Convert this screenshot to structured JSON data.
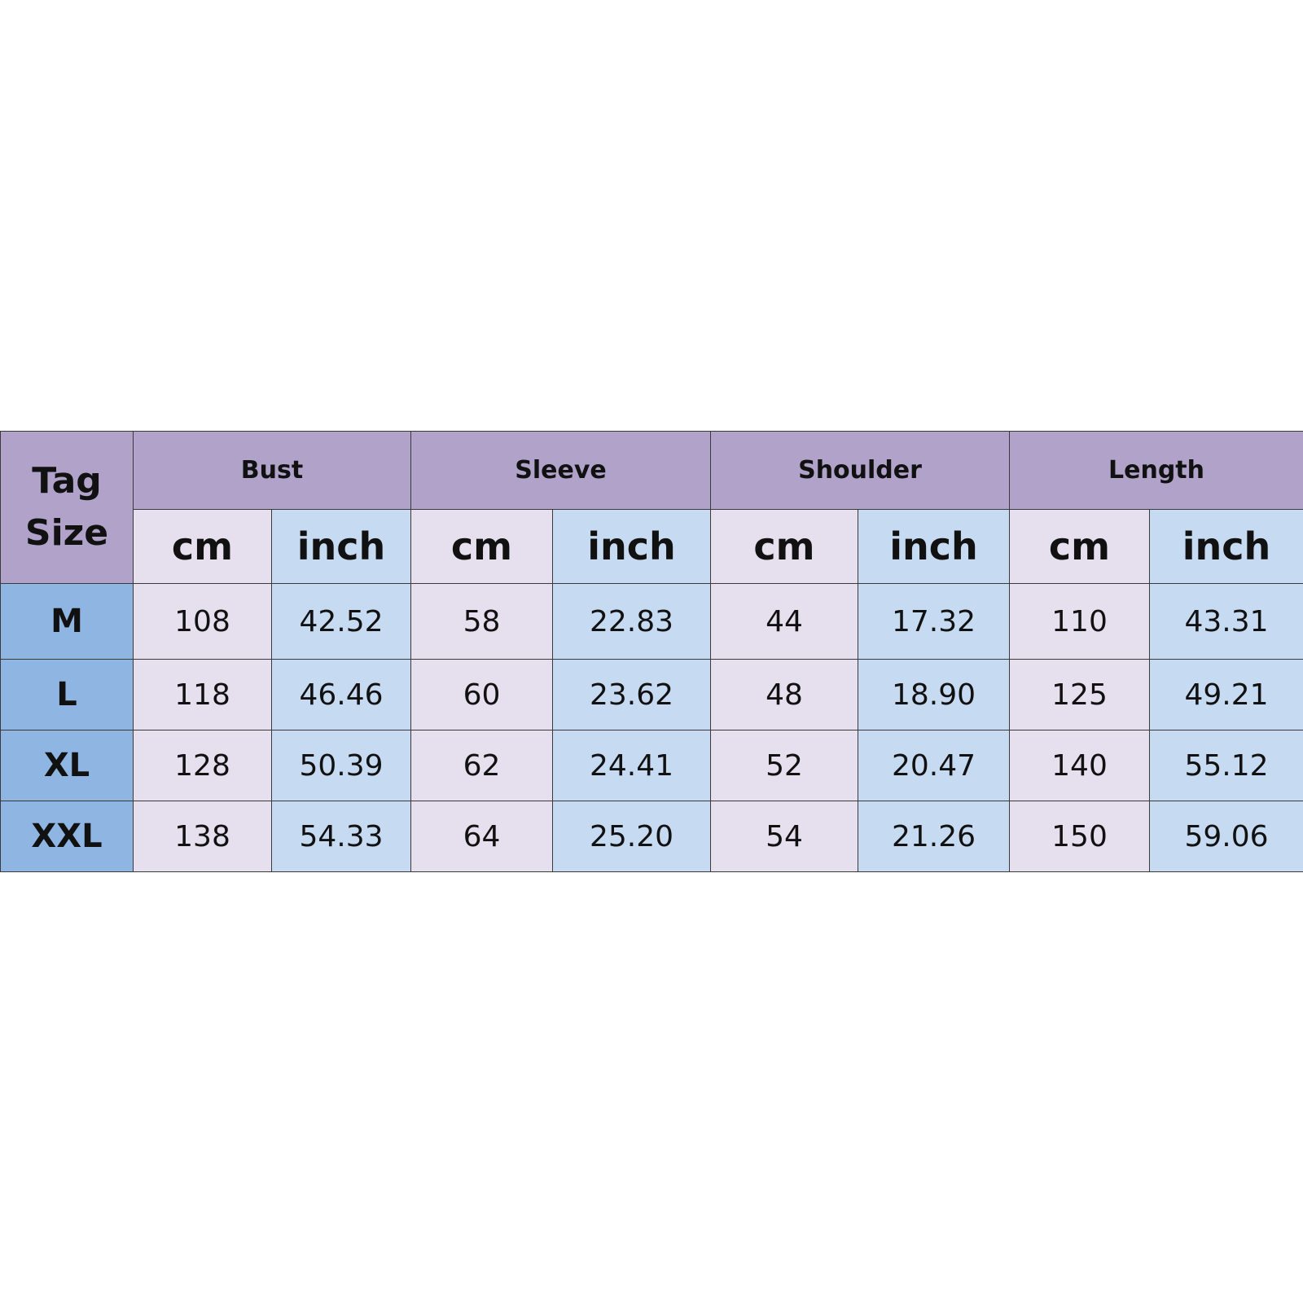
{
  "colors": {
    "header_bg": "#b0a2c9",
    "cm_bg": "#e6dfee",
    "inch_bg": "#c6daf2",
    "size_bg": "#8fb5e3",
    "border": "#3a3a3a"
  },
  "table": {
    "corner_line1": "Tag",
    "corner_line2": "Size",
    "groups": [
      "Bust",
      "Sleeve",
      "Shoulder",
      "Length"
    ],
    "units": [
      "cm",
      "inch",
      "cm",
      "inch",
      "cm",
      "inch",
      "cm",
      "inch"
    ],
    "rows": [
      {
        "size": "M",
        "values": [
          "108",
          "42.52",
          "58",
          "22.83",
          "44",
          "17.32",
          "110",
          "43.31"
        ]
      },
      {
        "size": "L",
        "values": [
          "118",
          "46.46",
          "60",
          "23.62",
          "48",
          "18.90",
          "125",
          "49.21"
        ]
      },
      {
        "size": "XL",
        "values": [
          "128",
          "50.39",
          "62",
          "24.41",
          "52",
          "20.47",
          "140",
          "55.12"
        ]
      },
      {
        "size": "XXL",
        "values": [
          "138",
          "54.33",
          "64",
          "25.20",
          "54",
          "21.26",
          "150",
          "59.06"
        ]
      }
    ]
  }
}
